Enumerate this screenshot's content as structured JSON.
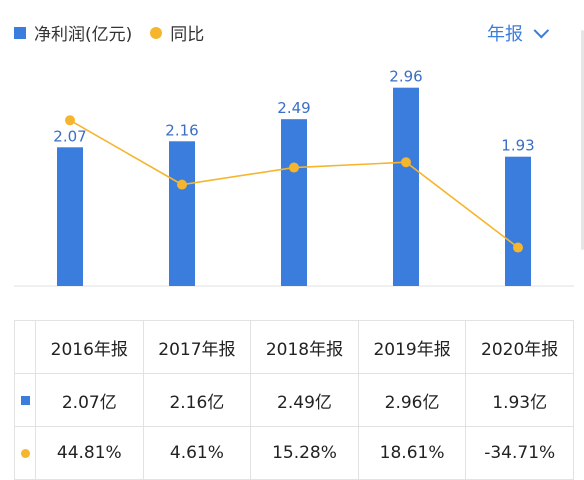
{
  "legend": {
    "bar_label": "净利润(亿元)",
    "line_label": "同比"
  },
  "period_selector": {
    "label": "年报"
  },
  "colors": {
    "bar": "#3b7ddd",
    "line": "#f5b52e",
    "positive": "#d9363e",
    "negative": "#1e9e53"
  },
  "chart_data": {
    "type": "bar",
    "categories": [
      "2016年报",
      "2017年报",
      "2018年报",
      "2019年报",
      "2020年报"
    ],
    "series": [
      {
        "name": "净利润(亿元)",
        "type": "bar",
        "values": [
          2.07,
          2.16,
          2.49,
          2.96,
          1.93
        ],
        "data_labels": [
          "2.07",
          "2.16",
          "2.49",
          "2.96",
          "1.93"
        ]
      },
      {
        "name": "同比",
        "type": "line",
        "values": [
          44.81,
          4.61,
          15.28,
          18.61,
          -34.71
        ]
      }
    ]
  },
  "table": {
    "headers": [
      "2016年报",
      "2017年报",
      "2018年报",
      "2019年报",
      "2020年报"
    ],
    "profit_row": [
      "2.07亿",
      "2.16亿",
      "2.49亿",
      "2.96亿",
      "1.93亿"
    ],
    "yoy_row": [
      "44.81%",
      "4.61%",
      "15.28%",
      "18.61%",
      "-34.71%"
    ]
  }
}
